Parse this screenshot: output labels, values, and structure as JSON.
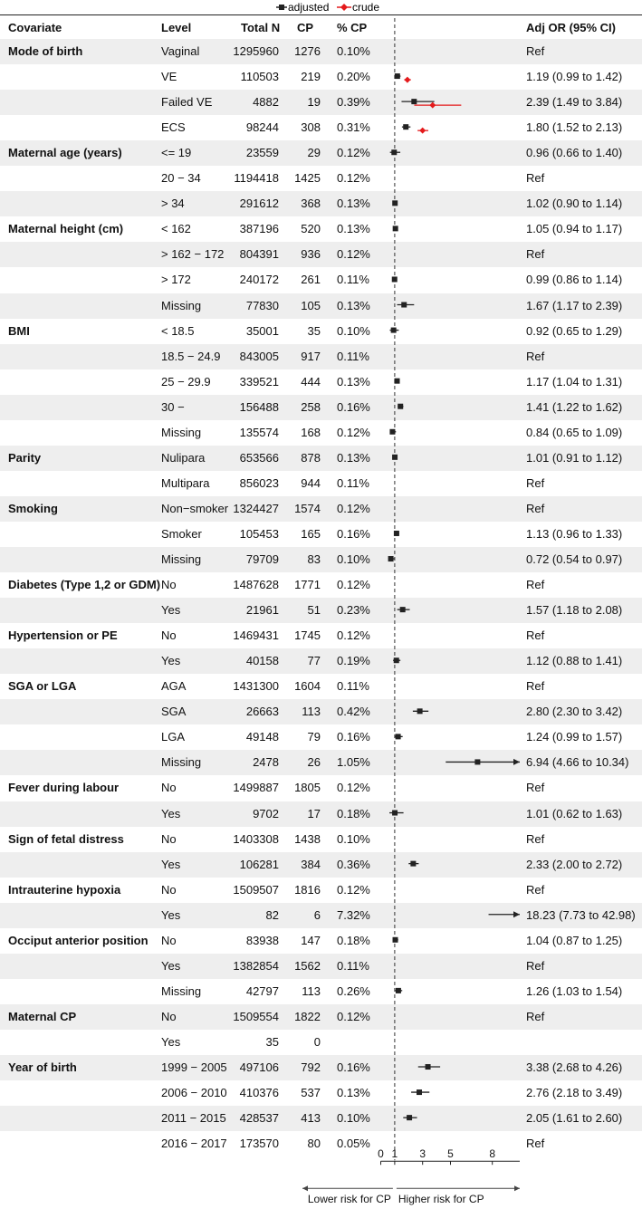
{
  "legend": {
    "adjusted_label": "adjusted",
    "crude_label": "crude",
    "adjusted_color": "#222222",
    "crude_color": "#e41a1c"
  },
  "header": {
    "covariate": "Covariate",
    "level": "Level",
    "total_n": "Total N",
    "cp": "CP",
    "pct_cp": "% CP",
    "adj_or": "Adj OR (95% CI)"
  },
  "rows": [
    {
      "covariate": "Mode of birth",
      "level": "Vaginal",
      "total": "1295960",
      "cp": "1276",
      "pct": "0.10%",
      "or_text": "Ref"
    },
    {
      "covariate": "",
      "level": "VE",
      "total": "110503",
      "cp": "219",
      "pct": "0.20%",
      "or_text": "1.19 (0.99 to 1.42)"
    },
    {
      "covariate": "",
      "level": "Failed VE",
      "total": "4882",
      "cp": "19",
      "pct": "0.39%",
      "or_text": "2.39 (1.49 to 3.84)"
    },
    {
      "covariate": "",
      "level": "ECS",
      "total": "98244",
      "cp": "308",
      "pct": "0.31%",
      "or_text": "1.80 (1.52 to 2.13)"
    },
    {
      "covariate": "Maternal age (years)",
      "level": "<= 19",
      "total": "23559",
      "cp": "29",
      "pct": "0.12%",
      "or_text": "0.96 (0.66 to 1.40)"
    },
    {
      "covariate": "",
      "level": "20 − 34",
      "total": "1194418",
      "cp": "1425",
      "pct": "0.12%",
      "or_text": "Ref"
    },
    {
      "covariate": "",
      "level": "> 34",
      "total": "291612",
      "cp": "368",
      "pct": "0.13%",
      "or_text": "1.02 (0.90 to 1.14)"
    },
    {
      "covariate": "Maternal height (cm)",
      "level": "< 162",
      "total": "387196",
      "cp": "520",
      "pct": "0.13%",
      "or_text": "1.05 (0.94 to 1.17)"
    },
    {
      "covariate": "",
      "level": "> 162 − 172",
      "total": "804391",
      "cp": "936",
      "pct": "0.12%",
      "or_text": "Ref"
    },
    {
      "covariate": "",
      "level": "> 172",
      "total": "240172",
      "cp": "261",
      "pct": "0.11%",
      "or_text": "0.99 (0.86 to 1.14)"
    },
    {
      "covariate": "",
      "level": "Missing",
      "total": "77830",
      "cp": "105",
      "pct": "0.13%",
      "or_text": "1.67 (1.17 to 2.39)"
    },
    {
      "covariate": "BMI",
      "level": "< 18.5",
      "total": "35001",
      "cp": "35",
      "pct": "0.10%",
      "or_text": "0.92 (0.65 to 1.29)"
    },
    {
      "covariate": "",
      "level": "18.5 − 24.9",
      "total": "843005",
      "cp": "917",
      "pct": "0.11%",
      "or_text": "Ref"
    },
    {
      "covariate": "",
      "level": "25 − 29.9",
      "total": "339521",
      "cp": "444",
      "pct": "0.13%",
      "or_text": "1.17 (1.04 to 1.31)"
    },
    {
      "covariate": "",
      "level": "30 −",
      "total": "156488",
      "cp": "258",
      "pct": "0.16%",
      "or_text": "1.41 (1.22 to 1.62)"
    },
    {
      "covariate": "",
      "level": "Missing",
      "total": "135574",
      "cp": "168",
      "pct": "0.12%",
      "or_text": "0.84 (0.65 to 1.09)"
    },
    {
      "covariate": "Parity",
      "level": "Nulipara",
      "total": "653566",
      "cp": "878",
      "pct": "0.13%",
      "or_text": "1.01 (0.91 to 1.12)"
    },
    {
      "covariate": "",
      "level": "Multipara",
      "total": "856023",
      "cp": "944",
      "pct": "0.11%",
      "or_text": "Ref"
    },
    {
      "covariate": "Smoking",
      "level": "Non−smoker",
      "total": "1324427",
      "cp": "1574",
      "pct": "0.12%",
      "or_text": "Ref"
    },
    {
      "covariate": "",
      "level": "Smoker",
      "total": "105453",
      "cp": "165",
      "pct": "0.16%",
      "or_text": "1.13 (0.96 to 1.33)"
    },
    {
      "covariate": "",
      "level": "Missing",
      "total": "79709",
      "cp": "83",
      "pct": "0.10%",
      "or_text": "0.72 (0.54 to 0.97)"
    },
    {
      "covariate": "Diabetes (Type 1,2 or GDM)",
      "level": "No",
      "total": "1487628",
      "cp": "1771",
      "pct": "0.12%",
      "or_text": "Ref"
    },
    {
      "covariate": "",
      "level": "Yes",
      "total": "21961",
      "cp": "51",
      "pct": "0.23%",
      "or_text": "1.57 (1.18 to 2.08)"
    },
    {
      "covariate": "Hypertension or PE",
      "level": "No",
      "total": "1469431",
      "cp": "1745",
      "pct": "0.12%",
      "or_text": "Ref"
    },
    {
      "covariate": "",
      "level": "Yes",
      "total": "40158",
      "cp": "77",
      "pct": "0.19%",
      "or_text": "1.12 (0.88 to 1.41)"
    },
    {
      "covariate": "SGA or LGA",
      "level": "AGA",
      "total": "1431300",
      "cp": "1604",
      "pct": "0.11%",
      "or_text": "Ref"
    },
    {
      "covariate": "",
      "level": "SGA",
      "total": "26663",
      "cp": "113",
      "pct": "0.42%",
      "or_text": "2.80 (2.30 to 3.42)"
    },
    {
      "covariate": "",
      "level": "LGA",
      "total": "49148",
      "cp": "79",
      "pct": "0.16%",
      "or_text": "1.24 (0.99 to 1.57)"
    },
    {
      "covariate": "",
      "level": "Missing",
      "total": "2478",
      "cp": "26",
      "pct": "1.05%",
      "or_text": "6.94 (4.66 to 10.34)"
    },
    {
      "covariate": "Fever during labour",
      "level": "No",
      "total": "1499887",
      "cp": "1805",
      "pct": "0.12%",
      "or_text": "Ref"
    },
    {
      "covariate": "",
      "level": "Yes",
      "total": "9702",
      "cp": "17",
      "pct": "0.18%",
      "or_text": "1.01 (0.62 to 1.63)"
    },
    {
      "covariate": "Sign of fetal distress",
      "level": "No",
      "total": "1403308",
      "cp": "1438",
      "pct": "0.10%",
      "or_text": "Ref"
    },
    {
      "covariate": "",
      "level": "Yes",
      "total": "106281",
      "cp": "384",
      "pct": "0.36%",
      "or_text": "2.33 (2.00 to 2.72)"
    },
    {
      "covariate": "Intrauterine hypoxia",
      "level": "No",
      "total": "1509507",
      "cp": "1816",
      "pct": "0.12%",
      "or_text": "Ref"
    },
    {
      "covariate": "",
      "level": "Yes",
      "total": "82",
      "cp": "6",
      "pct": "7.32%",
      "or_text": "18.23 (7.73 to 42.98)"
    },
    {
      "covariate": "Occiput anterior position",
      "level": "No",
      "total": "83938",
      "cp": "147",
      "pct": "0.18%",
      "or_text": "1.04 (0.87 to 1.25)"
    },
    {
      "covariate": "",
      "level": "Yes",
      "total": "1382854",
      "cp": "1562",
      "pct": "0.11%",
      "or_text": "Ref"
    },
    {
      "covariate": "",
      "level": "Missing",
      "total": "42797",
      "cp": "113",
      "pct": "0.26%",
      "or_text": "1.26 (1.03 to 1.54)"
    },
    {
      "covariate": "Maternal CP",
      "level": "No",
      "total": "1509554",
      "cp": "1822",
      "pct": "0.12%",
      "or_text": "Ref"
    },
    {
      "covariate": "",
      "level": "Yes",
      "total": "35",
      "cp": "0",
      "pct": "",
      "or_text": ""
    },
    {
      "covariate": "Year of birth",
      "level": "1999 − 2005",
      "total": "497106",
      "cp": "792",
      "pct": "0.16%",
      "or_text": "3.38 (2.68 to 4.26)"
    },
    {
      "covariate": "",
      "level": "2006 − 2010",
      "total": "410376",
      "cp": "537",
      "pct": "0.13%",
      "or_text": "2.76 (2.18 to 3.49)"
    },
    {
      "covariate": "",
      "level": "2011 − 2015",
      "total": "428537",
      "cp": "413",
      "pct": "0.10%",
      "or_text": "2.05 (1.61 to 2.60)"
    },
    {
      "covariate": "",
      "level": "2016 − 2017",
      "total": "173570",
      "cp": "80",
      "pct": "0.05%",
      "or_text": "Ref"
    }
  ],
  "chart_data": {
    "type": "forest",
    "x_axis": {
      "ticks": [
        0,
        1,
        3,
        5,
        8
      ],
      "range": [
        0,
        10
      ],
      "reference_line": 1
    },
    "direction_labels": {
      "left": "Lower risk for CP",
      "right": "Higher risk for CP"
    },
    "series": [
      {
        "name": "adjusted",
        "color": "#222222",
        "points": [
          null,
          [
            1.19,
            0.99,
            1.42
          ],
          [
            2.39,
            1.49,
            3.84
          ],
          [
            1.8,
            1.52,
            2.13
          ],
          [
            0.96,
            0.66,
            1.4
          ],
          null,
          [
            1.02,
            0.9,
            1.14
          ],
          [
            1.05,
            0.94,
            1.17
          ],
          null,
          [
            0.99,
            0.86,
            1.14
          ],
          [
            1.67,
            1.17,
            2.39
          ],
          [
            0.92,
            0.65,
            1.29
          ],
          null,
          [
            1.17,
            1.04,
            1.31
          ],
          [
            1.41,
            1.22,
            1.62
          ],
          [
            0.84,
            0.65,
            1.09
          ],
          [
            1.01,
            0.91,
            1.12
          ],
          null,
          null,
          [
            1.13,
            0.96,
            1.33
          ],
          [
            0.72,
            0.54,
            0.97
          ],
          null,
          [
            1.57,
            1.18,
            2.08
          ],
          null,
          [
            1.12,
            0.88,
            1.41
          ],
          null,
          [
            2.8,
            2.3,
            3.42
          ],
          [
            1.24,
            0.99,
            1.57
          ],
          [
            6.94,
            4.66,
            10.34
          ],
          null,
          [
            1.01,
            0.62,
            1.63
          ],
          null,
          [
            2.33,
            2.0,
            2.72
          ],
          null,
          [
            18.23,
            7.73,
            42.98
          ],
          [
            1.04,
            0.87,
            1.25
          ],
          null,
          [
            1.26,
            1.03,
            1.54
          ],
          null,
          null,
          [
            3.38,
            2.68,
            4.26
          ],
          [
            2.76,
            2.18,
            3.49
          ],
          [
            2.05,
            1.61,
            2.6
          ],
          null
        ]
      },
      {
        "name": "crude",
        "color": "#e41a1c",
        "points": [
          null,
          [
            1.91,
            1.68,
            2.16
          ],
          [
            3.72,
            2.4,
            5.77
          ],
          [
            3.0,
            2.64,
            3.41
          ]
        ]
      }
    ]
  }
}
